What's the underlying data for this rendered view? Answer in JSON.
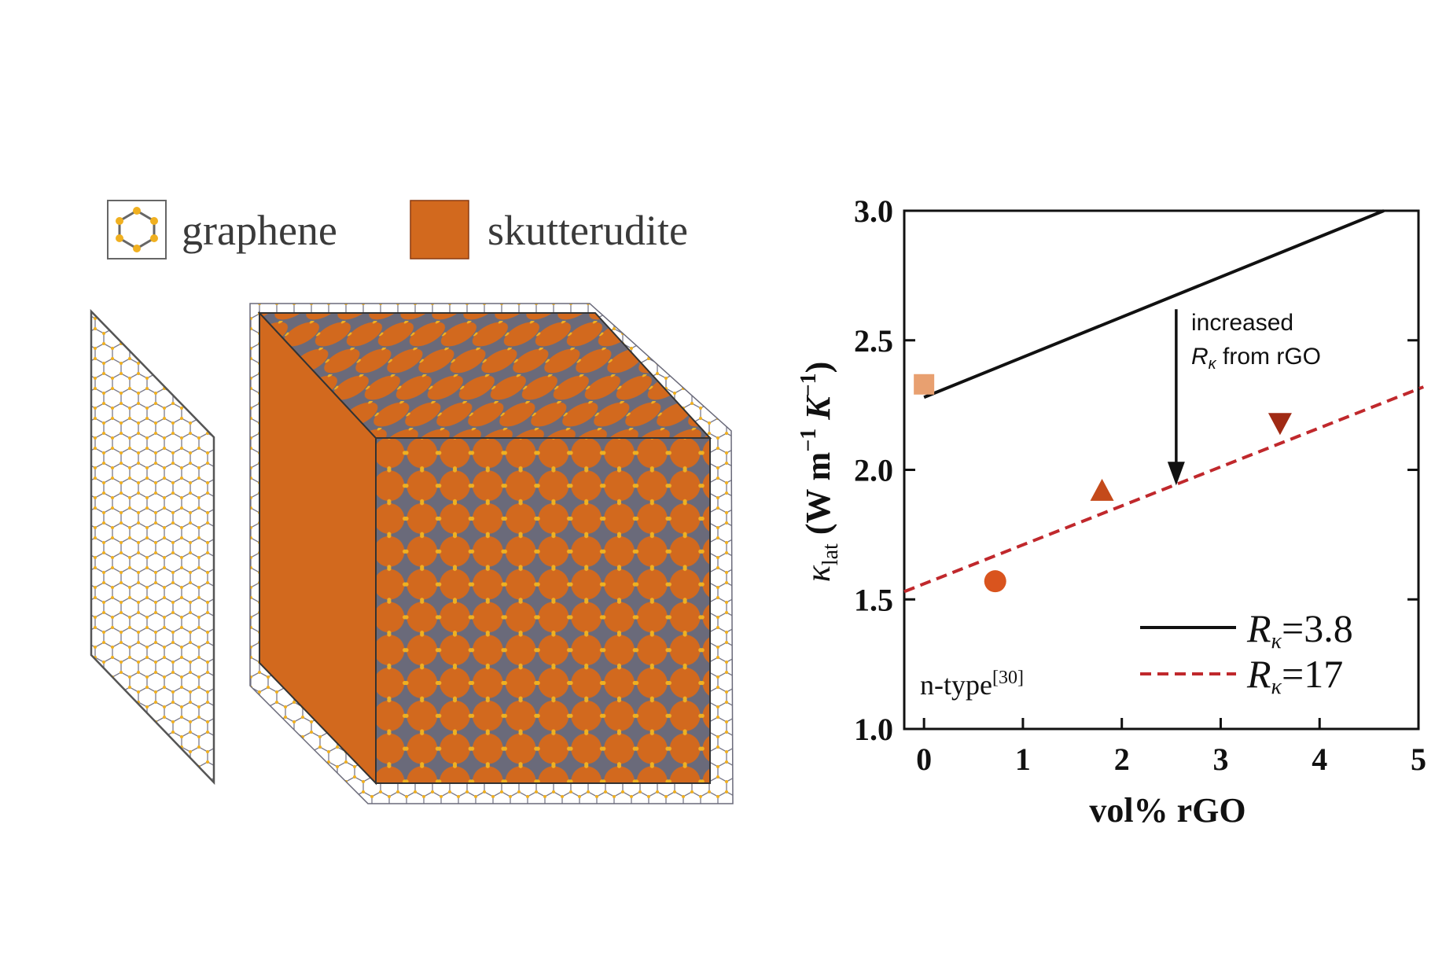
{
  "schematic": {
    "legend": [
      {
        "label": "graphene",
        "icon": "graphene-hexagon-icon"
      },
      {
        "label": "skutterudite",
        "icon": "orange-square-icon",
        "color": "#d2691e"
      }
    ],
    "colors": {
      "skutterudite": "#d2691e",
      "atom": "#f0b020",
      "bond": "#6a6a7a"
    }
  },
  "chart_data": {
    "type": "scatter",
    "xlabel": "vol% rGO",
    "ylabel_parts": {
      "kappa": "κ",
      "sub": "lat",
      "open": "(W m",
      "exp1": "−1",
      "k": "K",
      "exp2": "−1",
      "close": ")"
    },
    "xlim": [
      -0.2,
      5
    ],
    "ylim": [
      1.0,
      3.0
    ],
    "xticks": [
      0,
      1,
      2,
      3,
      4,
      5
    ],
    "yticks": [
      1.0,
      1.5,
      2.0,
      2.5,
      3.0
    ],
    "xtick_labels": [
      "0",
      "1",
      "2",
      "3",
      "4",
      "5"
    ],
    "ytick_labels": [
      "1.0",
      "1.5",
      "2.0",
      "2.5",
      "3.0"
    ],
    "lines": [
      {
        "label_sym": "R",
        "label_sub": "κ",
        "label_val": "=3.8",
        "style": "solid",
        "color": "#111111",
        "x": [
          0,
          4.65
        ],
        "y": [
          2.28,
          3.0
        ]
      },
      {
        "label_sym": "R",
        "label_sub": "κ",
        "label_val": "=17",
        "style": "dashed",
        "color": "#c0282c",
        "x": [
          -0.2,
          5.05
        ],
        "y": [
          1.53,
          2.32
        ]
      }
    ],
    "points": [
      {
        "x": 0,
        "y": 2.33,
        "marker": "square",
        "color": "#e8a070"
      },
      {
        "x": 0.72,
        "y": 1.57,
        "marker": "circle",
        "color": "#d9541e"
      },
      {
        "x": 1.8,
        "y": 1.92,
        "marker": "triangle-up",
        "color": "#c44a1a"
      },
      {
        "x": 3.6,
        "y": 2.18,
        "marker": "triangle-down",
        "color": "#a02a14"
      }
    ],
    "annotation": {
      "line1": "increased",
      "sym": "R",
      "sub": "κ",
      "rest": " from rGO",
      "arrow_x": 2.55,
      "arrow_y_from": 2.62,
      "arrow_y_to": 1.94
    },
    "note": {
      "text": "n-type",
      "sup": "[30]"
    },
    "legend_position": "bottom-right",
    "grid": false
  }
}
